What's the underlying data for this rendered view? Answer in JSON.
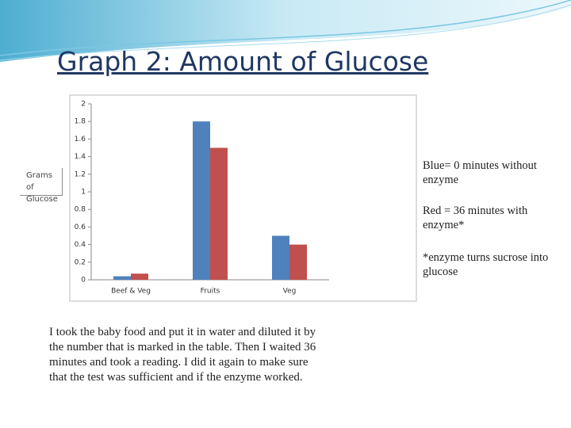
{
  "title": "Graph 2: Amount of Glucose",
  "chart_data": {
    "type": "bar",
    "y_label": "Grams of Glucose",
    "categories": [
      "Beef & Veg",
      "Fruits",
      "Veg"
    ],
    "series": [
      {
        "color": "#4f81bd",
        "values": [
          0.04,
          1.8,
          0.5
        ]
      },
      {
        "color": "#c0504d",
        "values": [
          0.07,
          1.5,
          0.4
        ]
      }
    ],
    "ylim": [
      0,
      2
    ],
    "yticks": [
      0,
      0.2,
      0.4,
      0.6,
      0.8,
      1,
      1.2,
      1.4,
      1.6,
      1.8,
      2
    ],
    "grid": false
  },
  "notes": [
    "Blue= 0 minutes without enzyme",
    "Red = 36 minutes with enzyme*",
    "*enzyme turns sucrose into glucose"
  ],
  "body": "I took the baby food and put it in water and diluted it by the number that is marked in the table. Then I waited 36 minutes and took a reading. I did it again to make sure that the test was sufficient and if the enzyme worked."
}
